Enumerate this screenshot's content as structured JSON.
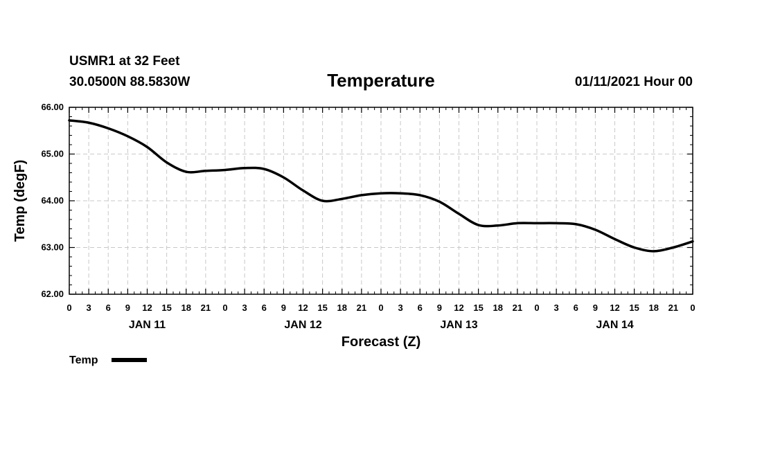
{
  "header": {
    "station": "USMR1 at 32 Feet",
    "coords": "30.0500N 88.5830W",
    "title": "Temperature",
    "date": "01/11/2021 Hour 00"
  },
  "chart_data": {
    "type": "line",
    "title": "Temperature",
    "xlabel": "Forecast (Z)",
    "ylabel": "Temp (degF)",
    "ylim": [
      62.0,
      66.0
    ],
    "xlim": [
      0,
      96
    ],
    "y_ticks": [
      "62.00",
      "63.00",
      "64.00",
      "65.00",
      "66.00"
    ],
    "y_tick_values": [
      62,
      63,
      64,
      65,
      66
    ],
    "x_tick_hours": [
      0,
      3,
      6,
      9,
      12,
      15,
      18,
      21,
      24,
      27,
      30,
      33,
      36,
      39,
      42,
      45,
      48,
      51,
      54,
      57,
      60,
      63,
      66,
      69,
      72,
      75,
      78,
      81,
      84,
      87,
      90,
      93,
      96
    ],
    "x_tick_labels": [
      "0",
      "3",
      "6",
      "9",
      "12",
      "15",
      "18",
      "21",
      "0",
      "3",
      "6",
      "9",
      "12",
      "15",
      "18",
      "21",
      "0",
      "3",
      "6",
      "9",
      "12",
      "15",
      "18",
      "21",
      "0",
      "3",
      "6",
      "9",
      "12",
      "15",
      "18",
      "21",
      "0"
    ],
    "day_labels": [
      {
        "hour": 12,
        "label": "JAN 11"
      },
      {
        "hour": 36,
        "label": "JAN 12"
      },
      {
        "hour": 60,
        "label": "JAN 13"
      },
      {
        "hour": 84,
        "label": "JAN 14"
      }
    ],
    "grid": true,
    "legend": "bottom-left",
    "series": [
      {
        "name": "Temp",
        "color": "#000000",
        "x": [
          0,
          3,
          6,
          9,
          12,
          15,
          18,
          21,
          24,
          27,
          30,
          33,
          36,
          39,
          42,
          45,
          48,
          51,
          54,
          57,
          60,
          63,
          66,
          69,
          72,
          75,
          78,
          81,
          84,
          87,
          90,
          93,
          96
        ],
        "values": [
          65.72,
          65.67,
          65.55,
          65.38,
          65.15,
          64.82,
          64.62,
          64.64,
          64.66,
          64.7,
          64.68,
          64.5,
          64.22,
          64.0,
          64.04,
          64.12,
          64.16,
          64.16,
          64.12,
          63.98,
          63.72,
          63.48,
          63.47,
          63.52,
          63.52,
          63.52,
          63.5,
          63.38,
          63.18,
          63.0,
          62.92,
          63.0,
          63.13
        ]
      }
    ]
  }
}
